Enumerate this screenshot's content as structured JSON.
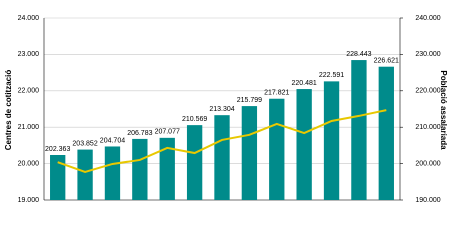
{
  "chart_data": {
    "type": "bar-line",
    "ylabel": "Centres de cotització",
    "y2label": "Població assalariada",
    "ylim": [
      19000,
      24000
    ],
    "yticks": [
      {
        "value": 19000,
        "label": "19.000"
      },
      {
        "value": 20000,
        "label": "20.000"
      },
      {
        "value": 21000,
        "label": "21.000"
      },
      {
        "value": 22000,
        "label": "22.000"
      },
      {
        "value": 23000,
        "label": "23.000"
      },
      {
        "value": 24000,
        "label": "24.000"
      }
    ],
    "y2lim": [
      190000,
      240000
    ],
    "y2ticks": [
      {
        "value": 190000,
        "label": "190.000"
      },
      {
        "value": 200000,
        "label": "200.000"
      },
      {
        "value": 210000,
        "label": "210.000"
      },
      {
        "value": 220000,
        "label": "220.000"
      },
      {
        "value": 230000,
        "label": "230.000"
      },
      {
        "value": 240000,
        "label": "240.000"
      }
    ],
    "grid": true,
    "series": [
      {
        "type": "bar",
        "axis": "y2",
        "color": "#008b8b",
        "values": [
          202363,
          203852,
          204704,
          206783,
          207077,
          210569,
          213304,
          215799,
          217821,
          220481,
          222591,
          228443,
          226621
        ],
        "value_labels": [
          "202.363",
          "203.852",
          "204.704",
          "206.783",
          "207.077",
          "210.569",
          "213.304",
          "215.799",
          "217.821",
          "220.481",
          "222.591",
          "228.443",
          "226.621"
        ]
      },
      {
        "type": "line",
        "color": "#e8c800",
        "values": [
          20040,
          19770,
          19990,
          20100,
          20430,
          20290,
          20650,
          20790,
          21090,
          20840,
          21170,
          21310,
          21470
        ]
      }
    ]
  }
}
